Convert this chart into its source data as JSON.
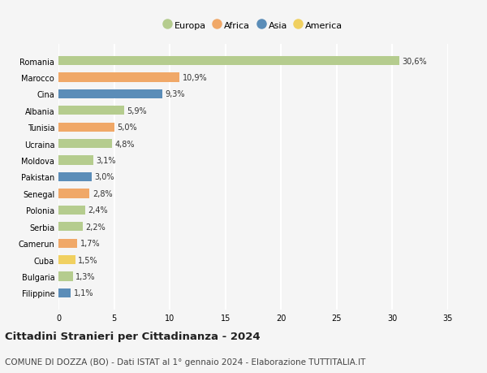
{
  "countries": [
    "Romania",
    "Marocco",
    "Cina",
    "Albania",
    "Tunisia",
    "Ucraina",
    "Moldova",
    "Pakistan",
    "Senegal",
    "Polonia",
    "Serbia",
    "Camerun",
    "Cuba",
    "Bulgaria",
    "Filippine"
  ],
  "values": [
    30.6,
    10.9,
    9.3,
    5.9,
    5.0,
    4.8,
    3.1,
    3.0,
    2.8,
    2.4,
    2.2,
    1.7,
    1.5,
    1.3,
    1.1
  ],
  "labels": [
    "30,6%",
    "10,9%",
    "9,3%",
    "5,9%",
    "5,0%",
    "4,8%",
    "3,1%",
    "3,0%",
    "2,8%",
    "2,4%",
    "2,2%",
    "1,7%",
    "1,5%",
    "1,3%",
    "1,1%"
  ],
  "continents": [
    "Europa",
    "Africa",
    "Asia",
    "Europa",
    "Africa",
    "Europa",
    "Europa",
    "Asia",
    "Africa",
    "Europa",
    "Europa",
    "Africa",
    "America",
    "Europa",
    "Asia"
  ],
  "continent_colors": {
    "Europa": "#b5cc8e",
    "Africa": "#f0a868",
    "Asia": "#5b8db8",
    "America": "#f0d060"
  },
  "legend_order": [
    "Europa",
    "Africa",
    "Asia",
    "America"
  ],
  "xlim": [
    0,
    35
  ],
  "xticks": [
    0,
    5,
    10,
    15,
    20,
    25,
    30,
    35
  ],
  "title": "Cittadini Stranieri per Cittadinanza - 2024",
  "subtitle": "COMUNE DI DOZZA (BO) - Dati ISTAT al 1° gennaio 2024 - Elaborazione TUTTITALIA.IT",
  "background_color": "#f5f5f5",
  "grid_color": "#ffffff",
  "title_fontsize": 9.5,
  "subtitle_fontsize": 7.5,
  "label_fontsize": 7,
  "tick_fontsize": 7
}
